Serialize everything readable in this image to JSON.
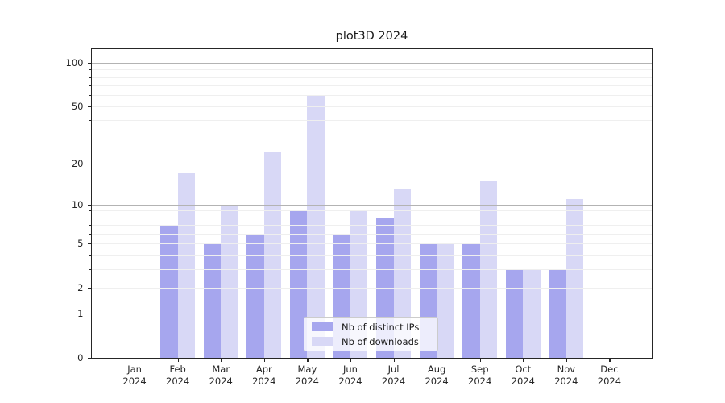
{
  "chart_data": {
    "type": "bar",
    "title": "plot3D 2024",
    "categories": [
      "Jan 2024",
      "Feb 2024",
      "Mar 2024",
      "Apr 2024",
      "May 2024",
      "Jun 2024",
      "Jul 2024",
      "Aug 2024",
      "Sep 2024",
      "Oct 2024",
      "Nov 2024",
      "Dec 2024"
    ],
    "series": [
      {
        "name": "Nb of distinct IPs",
        "color": "#a6a6ee",
        "values": [
          0,
          7,
          5,
          6,
          9,
          6,
          8,
          5,
          5,
          3,
          3,
          0
        ]
      },
      {
        "name": "Nb of downloads",
        "color": "#d8d8f6",
        "values": [
          0,
          17,
          10,
          24,
          59,
          9,
          13,
          5,
          15,
          3,
          11,
          0
        ]
      }
    ],
    "yscale": "log1p",
    "yticks": [
      0,
      1,
      2,
      5,
      10,
      20,
      50,
      100
    ],
    "ylim": [
      0,
      123
    ],
    "xlabel": "",
    "ylabel": "",
    "grid": true,
    "legend_position": "lower center"
  },
  "colors": {
    "major_grid": "#b3b3b3",
    "minor_grid": "#efefef",
    "spine": "#262626",
    "text": "#1a1a1a"
  }
}
